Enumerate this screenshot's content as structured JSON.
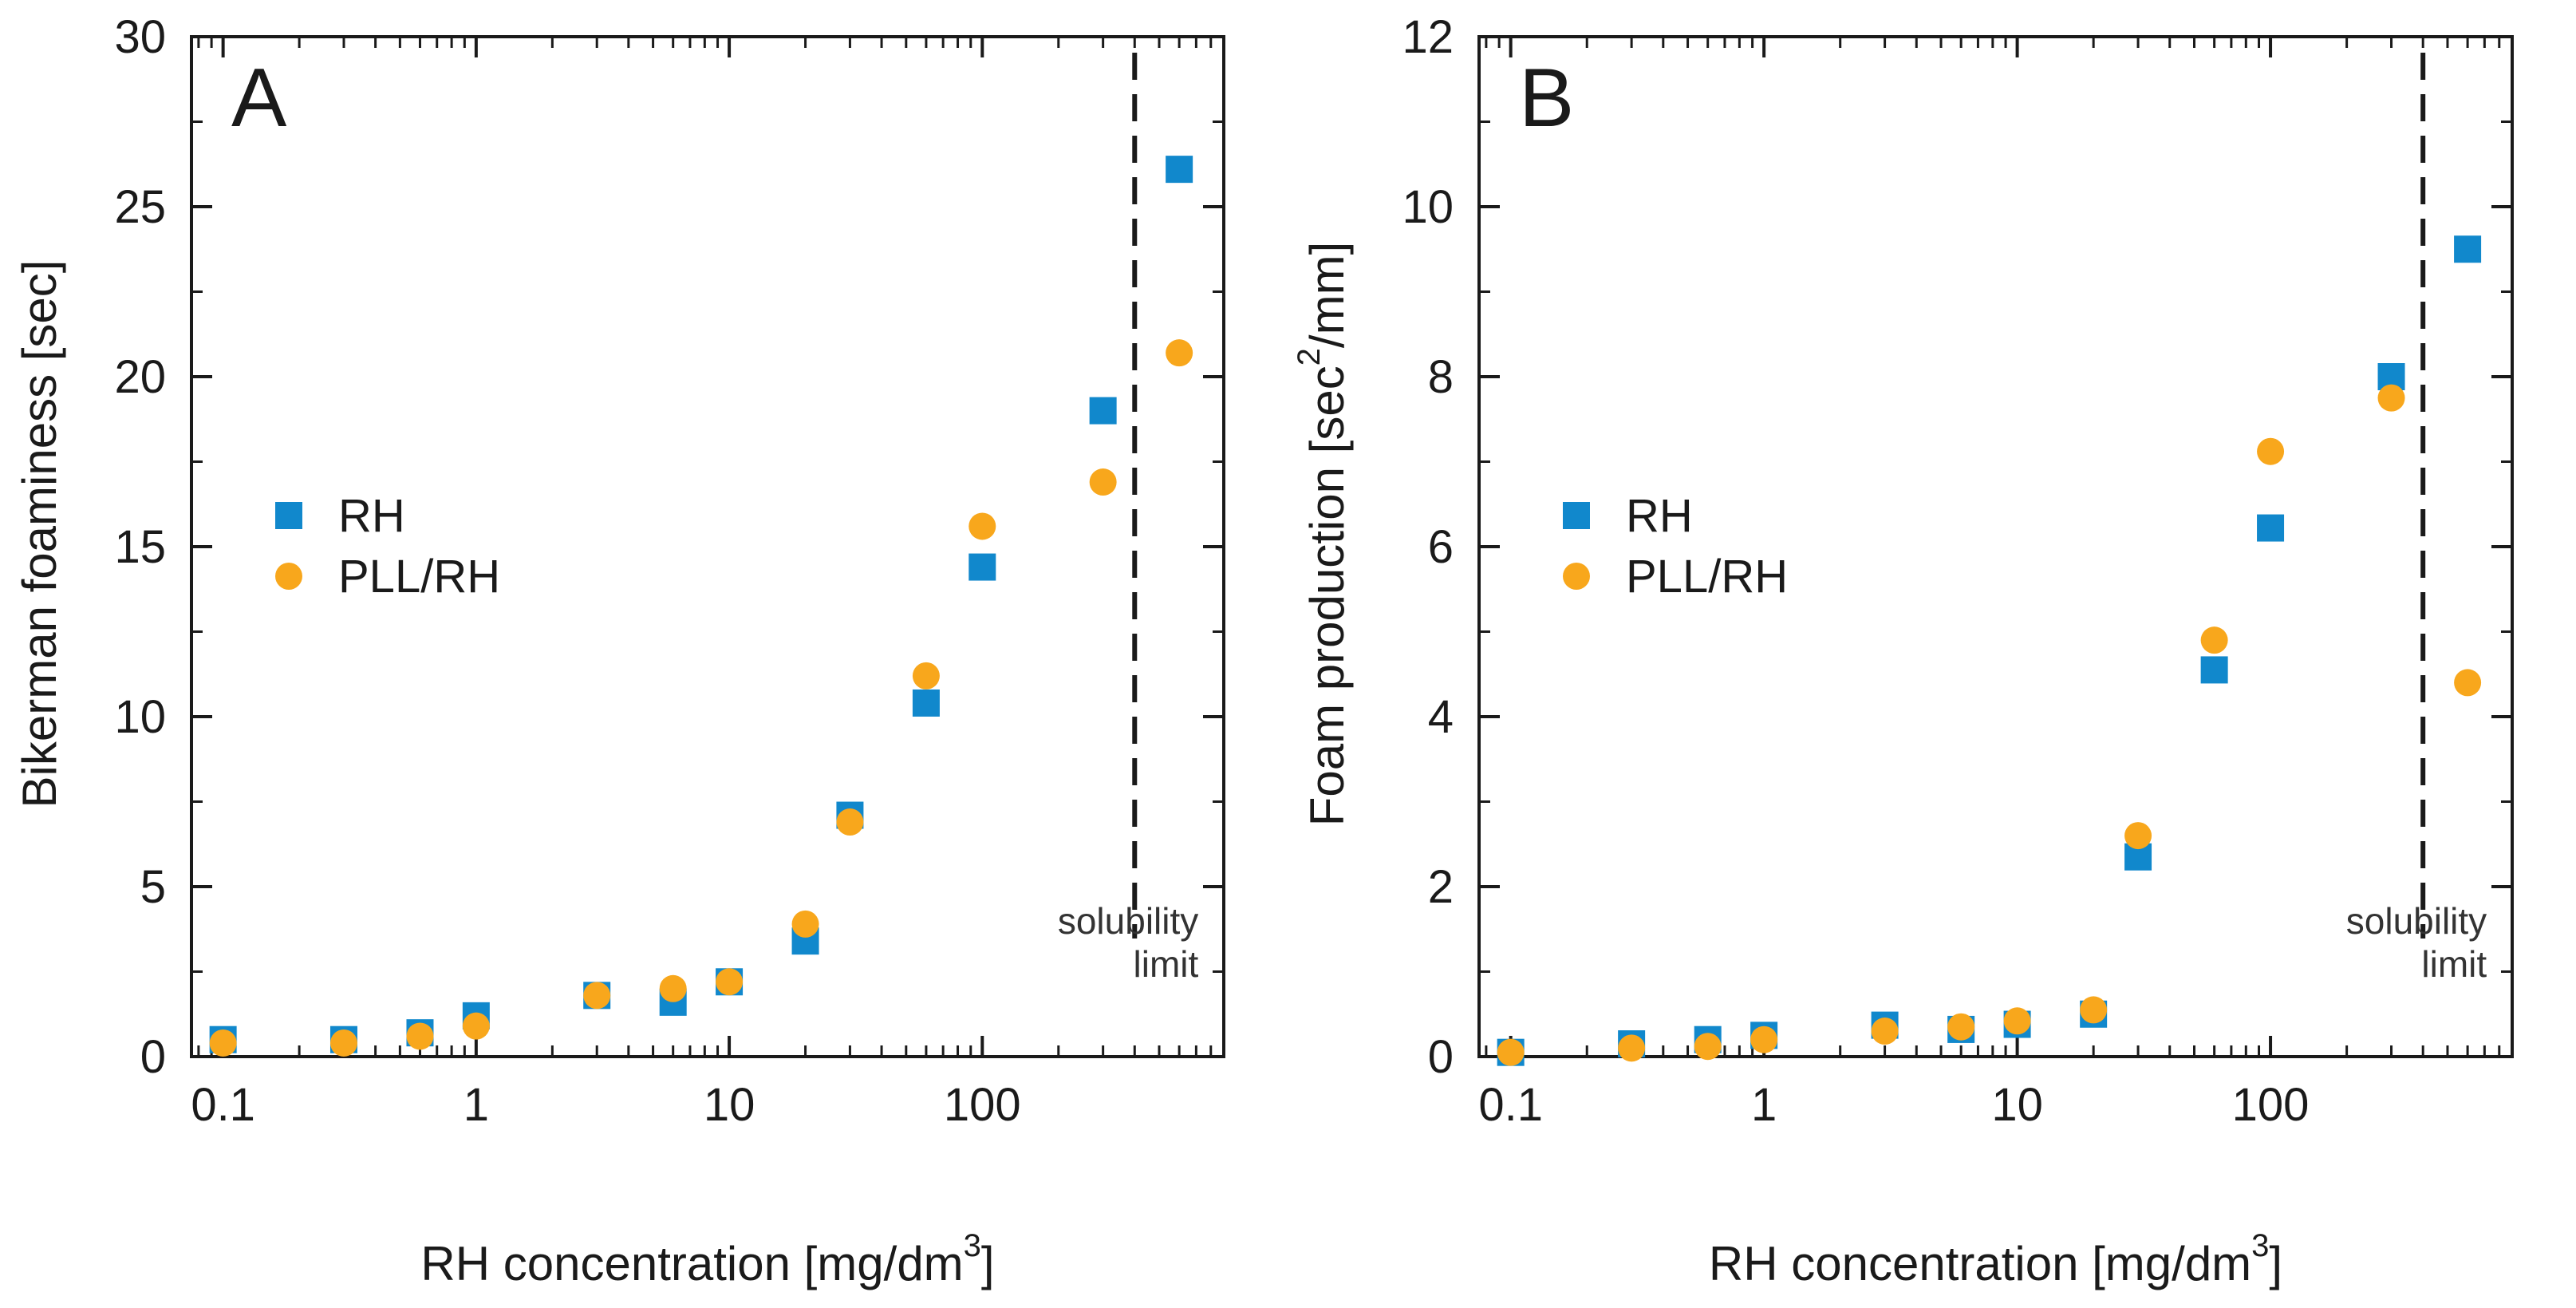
{
  "chart_data": [
    {
      "type": "scatter",
      "panel_label": "A",
      "ylabel": "Bikerman foaminess [sec]",
      "xlabel": "RH concentration [mg/dm",
      "xlabel_superscript": "3",
      "xlabel_suffix": "]",
      "x_scale": "log",
      "xlim": [
        0.075,
        900
      ],
      "ylim": [
        0,
        30
      ],
      "x_ticks": [
        0.1,
        1,
        10,
        100
      ],
      "x_tick_labels": [
        "0.1",
        "1",
        "10",
        "100"
      ],
      "y_ticks": [
        0,
        5,
        10,
        15,
        20,
        25,
        30
      ],
      "y_tick_labels": [
        "0",
        "5",
        "10",
        "15",
        "20",
        "25",
        "30"
      ],
      "grid": false,
      "legend_position": "center-left",
      "vline": {
        "x": 400,
        "style": "dashed"
      },
      "annotation": [
        "solubility",
        "limit"
      ],
      "series": [
        {
          "name": "RH",
          "marker": "square",
          "color": "#1188cc",
          "x": [
            0.1,
            0.3,
            0.6,
            1,
            3,
            6,
            10,
            20,
            30,
            60,
            100,
            300,
            600
          ],
          "y": [
            0.5,
            0.5,
            0.7,
            1.2,
            1.8,
            1.6,
            2.2,
            3.4,
            7.1,
            10.4,
            14.4,
            19.0,
            26.1
          ]
        },
        {
          "name": "PLL/RH",
          "marker": "circle",
          "color": "#f8a71c",
          "x": [
            0.1,
            0.3,
            0.6,
            1,
            3,
            6,
            10,
            20,
            30,
            60,
            100,
            300,
            600
          ],
          "y": [
            0.4,
            0.4,
            0.6,
            0.9,
            1.8,
            2.0,
            2.2,
            3.9,
            6.9,
            11.2,
            15.6,
            16.9,
            20.7
          ]
        }
      ]
    },
    {
      "type": "scatter",
      "panel_label": "B",
      "ylabel": "Foam production [sec",
      "ylabel_superscript": "2",
      "ylabel_suffix": "/mm]",
      "xlabel": "RH concentration [mg/dm",
      "xlabel_superscript": "3",
      "xlabel_suffix": "]",
      "x_scale": "log",
      "xlim": [
        0.075,
        900
      ],
      "ylim": [
        0,
        12
      ],
      "x_ticks": [
        0.1,
        1,
        10,
        100
      ],
      "x_tick_labels": [
        "0.1",
        "1",
        "10",
        "100"
      ],
      "y_ticks": [
        0,
        2,
        4,
        6,
        8,
        10,
        12
      ],
      "y_tick_labels": [
        "0",
        "2",
        "4",
        "6",
        "8",
        "10",
        "12"
      ],
      "grid": false,
      "legend_position": "center-left",
      "vline": {
        "x": 400,
        "style": "dashed"
      },
      "annotation": [
        "solubility",
        "limit"
      ],
      "series": [
        {
          "name": "RH",
          "marker": "square",
          "color": "#1188cc",
          "x": [
            0.1,
            0.3,
            0.6,
            1,
            3,
            6,
            10,
            20,
            30,
            60,
            100,
            300,
            600
          ],
          "y": [
            0.05,
            0.15,
            0.2,
            0.25,
            0.37,
            0.32,
            0.38,
            0.5,
            2.35,
            4.55,
            6.22,
            8.0,
            9.5
          ]
        },
        {
          "name": "PLL/RH",
          "marker": "circle",
          "color": "#f8a71c",
          "x": [
            0.1,
            0.3,
            0.6,
            1,
            3,
            6,
            10,
            20,
            30,
            60,
            100,
            300,
            600
          ],
          "y": [
            0.05,
            0.1,
            0.12,
            0.2,
            0.3,
            0.35,
            0.42,
            0.55,
            2.6,
            4.9,
            7.12,
            7.75,
            4.4
          ]
        }
      ]
    }
  ]
}
